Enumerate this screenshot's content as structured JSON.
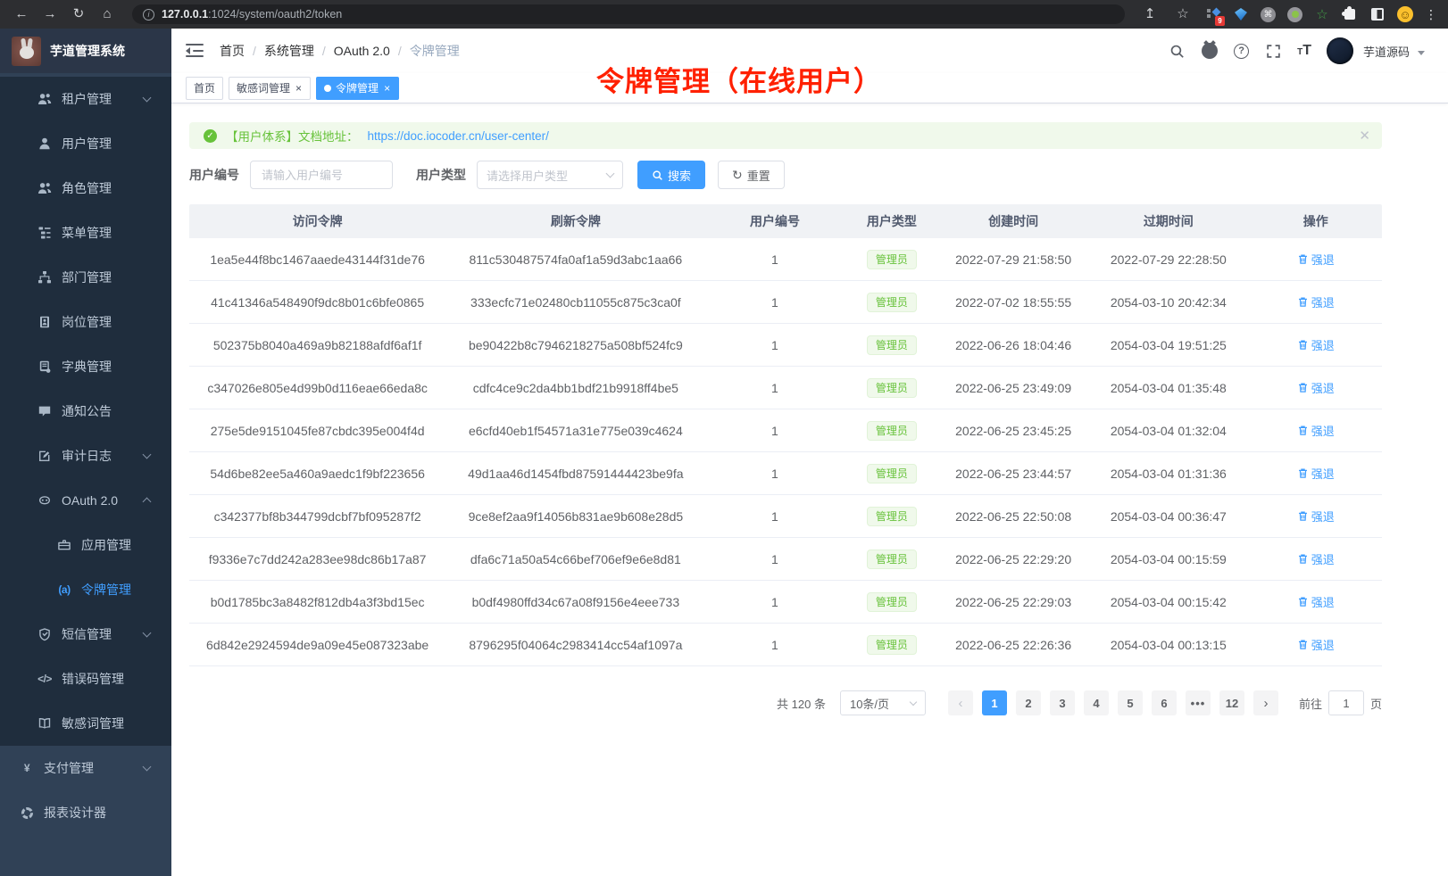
{
  "colors": {
    "accent": "#409eff",
    "success": "#67c23a",
    "annotation_red": "#ff2000",
    "sidebar_bg": "#304156",
    "submenu_bg": "#1f2d3d"
  },
  "browser": {
    "url_host": "127.0.0.1",
    "url_path": ":1024/system/oauth2/token",
    "extension_badge": "9"
  },
  "sidebar": {
    "app_title": "芋道管理系统",
    "items": [
      {
        "label": "租户管理",
        "icon": "tenant-users-icon",
        "level": 2,
        "chevron": "down",
        "active": false
      },
      {
        "label": "用户管理",
        "icon": "user-icon",
        "level": 2,
        "chevron": "",
        "active": false
      },
      {
        "label": "角色管理",
        "icon": "role-users-icon",
        "level": 2,
        "chevron": "",
        "active": false
      },
      {
        "label": "菜单管理",
        "icon": "menu-tree-icon",
        "level": 2,
        "chevron": "",
        "active": false
      },
      {
        "label": "部门管理",
        "icon": "org-chart-icon",
        "level": 2,
        "chevron": "",
        "active": false
      },
      {
        "label": "岗位管理",
        "icon": "id-badge-icon",
        "level": 2,
        "chevron": "",
        "active": false
      },
      {
        "label": "字典管理",
        "icon": "dictionary-icon",
        "level": 2,
        "chevron": "",
        "active": false
      },
      {
        "label": "通知公告",
        "icon": "announcement-icon",
        "level": 2,
        "chevron": "",
        "active": false
      },
      {
        "label": "审计日志",
        "icon": "audit-log-icon",
        "level": 2,
        "chevron": "down",
        "active": false
      },
      {
        "label": "OAuth 2.0",
        "icon": "oauth-robot-icon",
        "level": 2,
        "chevron": "up",
        "active": false
      },
      {
        "label": "应用管理",
        "icon": "briefcase-icon",
        "level": 3,
        "chevron": "",
        "active": false
      },
      {
        "label": "令牌管理",
        "icon": "token-signal-icon",
        "level": 3,
        "chevron": "",
        "active": true
      },
      {
        "label": "短信管理",
        "icon": "shield-check-icon",
        "level": 2,
        "chevron": "down",
        "active": false
      },
      {
        "label": "错误码管理",
        "icon": "code-icon",
        "level": 2,
        "chevron": "",
        "active": false
      },
      {
        "label": "敏感词管理",
        "icon": "open-book-icon",
        "level": 2,
        "chevron": "",
        "active": false
      },
      {
        "label": "支付管理",
        "icon": "yen-icon",
        "level": 1,
        "chevron": "down",
        "active": false
      },
      {
        "label": "报表设计器",
        "icon": "report-ring-icon",
        "level": 1,
        "chevron": "",
        "active": false
      }
    ]
  },
  "navbar": {
    "breadcrumb": [
      "首页",
      "系统管理",
      "OAuth 2.0",
      "令牌管理"
    ],
    "user_name": "芋道源码"
  },
  "tabs": [
    {
      "label": "首页",
      "closable": false,
      "active": false
    },
    {
      "label": "敏感词管理",
      "closable": true,
      "active": false
    },
    {
      "label": "令牌管理",
      "closable": true,
      "active": true
    }
  ],
  "annotation": "令牌管理（在线用户）",
  "alert": {
    "text": "【用户体系】文档地址：",
    "link": "https://doc.iocoder.cn/user-center/"
  },
  "filter": {
    "user_id_label": "用户编号",
    "user_id_placeholder": "请输入用户编号",
    "user_type_label": "用户类型",
    "user_type_placeholder": "请选择用户类型",
    "search_label": "搜索",
    "reset_label": "重置"
  },
  "table": {
    "headers": [
      "访问令牌",
      "刷新令牌",
      "用户编号",
      "用户类型",
      "创建时间",
      "过期时间",
      "操作"
    ],
    "action_label": "强退",
    "rows": [
      {
        "access_token": "1ea5e44f8bc1467aaede43144f31de76",
        "refresh_token": "811c530487574fa0af1a59d3abc1aa66",
        "user_id": "1",
        "user_type": "管理员",
        "created_at": "2022-07-29 21:58:50",
        "expires_at": "2022-07-29 22:28:50"
      },
      {
        "access_token": "41c41346a548490f9dc8b01c6bfe0865",
        "refresh_token": "333ecfc71e02480cb11055c875c3ca0f",
        "user_id": "1",
        "user_type": "管理员",
        "created_at": "2022-07-02 18:55:55",
        "expires_at": "2054-03-10 20:42:34"
      },
      {
        "access_token": "502375b8040a469a9b82188afdf6af1f",
        "refresh_token": "be90422b8c7946218275a508bf524fc9",
        "user_id": "1",
        "user_type": "管理员",
        "created_at": "2022-06-26 18:04:46",
        "expires_at": "2054-03-04 19:51:25"
      },
      {
        "access_token": "c347026e805e4d99b0d116eae66eda8c",
        "refresh_token": "cdfc4ce9c2da4bb1bdf21b9918ff4be5",
        "user_id": "1",
        "user_type": "管理员",
        "created_at": "2022-06-25 23:49:09",
        "expires_at": "2054-03-04 01:35:48"
      },
      {
        "access_token": "275e5de9151045fe87cbdc395e004f4d",
        "refresh_token": "e6cfd40eb1f54571a31e775e039c4624",
        "user_id": "1",
        "user_type": "管理员",
        "created_at": "2022-06-25 23:45:25",
        "expires_at": "2054-03-04 01:32:04"
      },
      {
        "access_token": "54d6be82ee5a460a9aedc1f9bf223656",
        "refresh_token": "49d1aa46d1454fbd87591444423be9fa",
        "user_id": "1",
        "user_type": "管理员",
        "created_at": "2022-06-25 23:44:57",
        "expires_at": "2054-03-04 01:31:36"
      },
      {
        "access_token": "c342377bf8b344799dcbf7bf095287f2",
        "refresh_token": "9ce8ef2aa9f14056b831ae9b608e28d5",
        "user_id": "1",
        "user_type": "管理员",
        "created_at": "2022-06-25 22:50:08",
        "expires_at": "2054-03-04 00:36:47"
      },
      {
        "access_token": "f9336e7c7dd242a283ee98dc86b17a87",
        "refresh_token": "dfa6c71a50a54c66bef706ef9e6e8d81",
        "user_id": "1",
        "user_type": "管理员",
        "created_at": "2022-06-25 22:29:20",
        "expires_at": "2054-03-04 00:15:59"
      },
      {
        "access_token": "b0d1785bc3a8482f812db4a3f3bd15ec",
        "refresh_token": "b0df4980ffd34c67a08f9156e4eee733",
        "user_id": "1",
        "user_type": "管理员",
        "created_at": "2022-06-25 22:29:03",
        "expires_at": "2054-03-04 00:15:42"
      },
      {
        "access_token": "6d842e2924594de9a09e45e087323abe",
        "refresh_token": "8796295f04064c2983414cc54af1097a",
        "user_id": "1",
        "user_type": "管理员",
        "created_at": "2022-06-25 22:26:36",
        "expires_at": "2054-03-04 00:13:15"
      }
    ]
  },
  "pagination": {
    "total": "共 120 条",
    "page_size": "10条/页",
    "pages": [
      "1",
      "2",
      "3",
      "4",
      "5",
      "6",
      "...",
      "12"
    ],
    "active_page": "1",
    "goto_label": "前往",
    "goto_value": "1",
    "goto_suffix": "页"
  }
}
